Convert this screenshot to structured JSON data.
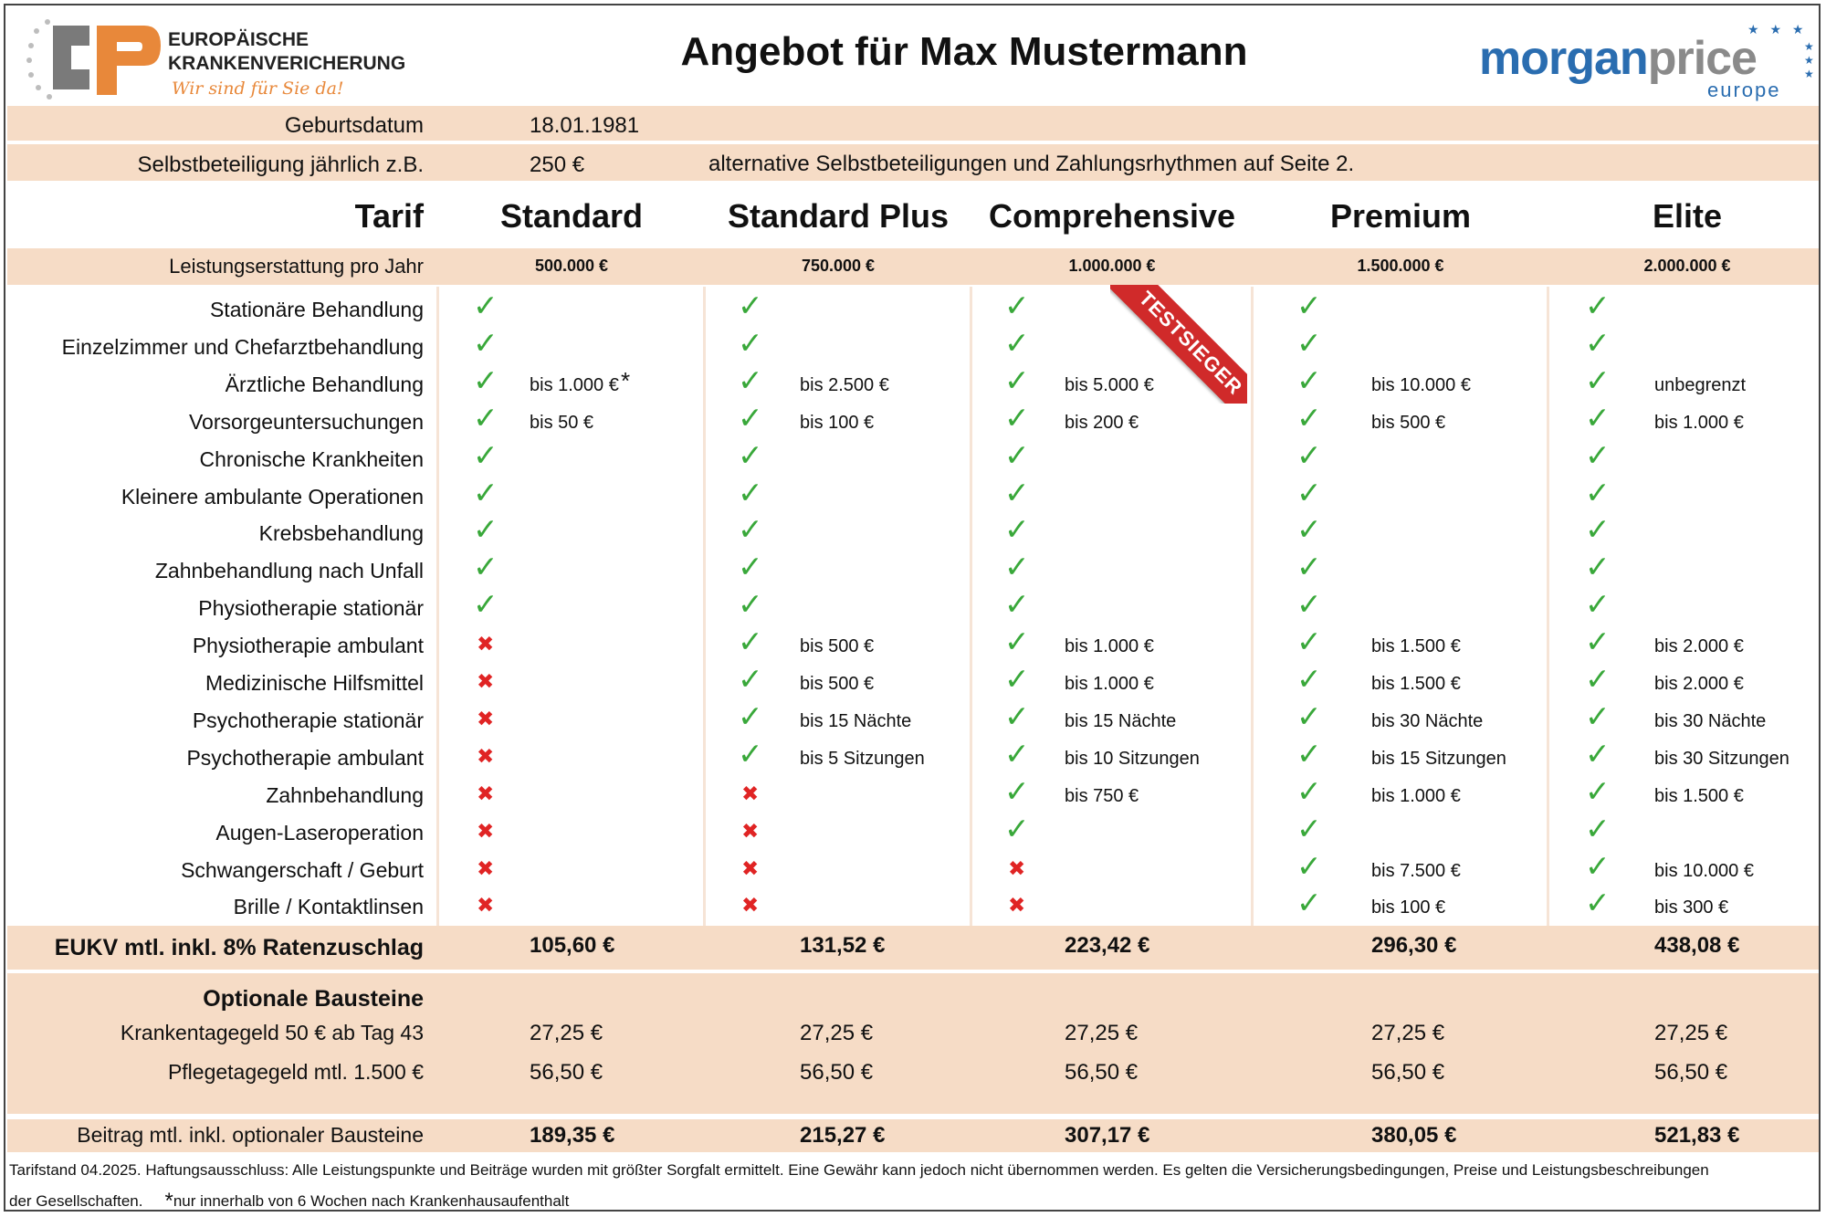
{
  "header": {
    "logo_left": {
      "initials": "CP",
      "line1": "EUROPÄISCHE",
      "line2": "KRANKENVERICHERUNG",
      "slogan": "Wir sind für Sie da!"
    },
    "title": "Angebot für Max Mustermann",
    "logo_right": {
      "word1": "morgan",
      "word2": "price",
      "sub": "europe"
    }
  },
  "info": {
    "birth_label": "Geburtsdatum",
    "birth_value": "18.01.1981",
    "deductible_label": "Selbstbeteiligung jährlich z.B.",
    "deductible_value": "250 €",
    "deductible_note": "alternative Selbstbeteiligungen und Zahlungsrhythmen auf Seite 2."
  },
  "table": {
    "tarif_label": "Tarif",
    "reimbursement_label": "Leistungserstattung pro Jahr",
    "badge": "TESTSIEGER",
    "plans": [
      {
        "name": "Standard",
        "amount": "500.000 €"
      },
      {
        "name": "Standard Plus",
        "amount": "750.000 €"
      },
      {
        "name": "Comprehensive",
        "amount": "1.000.000 €"
      },
      {
        "name": "Premium",
        "amount": "1.500.000 €"
      },
      {
        "name": "Elite",
        "amount": "2.000.000 €"
      }
    ],
    "rows": [
      {
        "label": "Stationäre Behandlung",
        "cells": [
          {
            "s": "y",
            "t": ""
          },
          {
            "s": "y",
            "t": ""
          },
          {
            "s": "y",
            "t": ""
          },
          {
            "s": "y",
            "t": ""
          },
          {
            "s": "y",
            "t": ""
          }
        ]
      },
      {
        "label": "Einzelzimmer und Chefarztbehandlung",
        "cells": [
          {
            "s": "y",
            "t": ""
          },
          {
            "s": "y",
            "t": ""
          },
          {
            "s": "y",
            "t": ""
          },
          {
            "s": "y",
            "t": ""
          },
          {
            "s": "y",
            "t": ""
          }
        ]
      },
      {
        "label": "Ärztliche Behandlung",
        "cells": [
          {
            "s": "y",
            "t": "bis 1.000 €",
            "star": "*"
          },
          {
            "s": "y",
            "t": "bis 2.500 €"
          },
          {
            "s": "y",
            "t": "bis 5.000 €"
          },
          {
            "s": "y",
            "t": "bis 10.000 €"
          },
          {
            "s": "y",
            "t": "unbegrenzt"
          }
        ]
      },
      {
        "label": "Vorsorgeuntersuchungen",
        "cells": [
          {
            "s": "y",
            "t": "bis 50 €"
          },
          {
            "s": "y",
            "t": "bis 100 €"
          },
          {
            "s": "y",
            "t": "bis 200 €"
          },
          {
            "s": "y",
            "t": "bis 500 €"
          },
          {
            "s": "y",
            "t": "bis 1.000 €"
          }
        ]
      },
      {
        "label": "Chronische Krankheiten",
        "cells": [
          {
            "s": "y",
            "t": ""
          },
          {
            "s": "y",
            "t": ""
          },
          {
            "s": "y",
            "t": ""
          },
          {
            "s": "y",
            "t": ""
          },
          {
            "s": "y",
            "t": ""
          }
        ]
      },
      {
        "label": "Kleinere ambulante Operationen",
        "cells": [
          {
            "s": "y",
            "t": ""
          },
          {
            "s": "y",
            "t": ""
          },
          {
            "s": "y",
            "t": ""
          },
          {
            "s": "y",
            "t": ""
          },
          {
            "s": "y",
            "t": ""
          }
        ]
      },
      {
        "label": "Krebsbehandlung",
        "cells": [
          {
            "s": "y",
            "t": ""
          },
          {
            "s": "y",
            "t": ""
          },
          {
            "s": "y",
            "t": ""
          },
          {
            "s": "y",
            "t": ""
          },
          {
            "s": "y",
            "t": ""
          }
        ]
      },
      {
        "label": "Zahnbehandlung nach Unfall",
        "cells": [
          {
            "s": "y",
            "t": ""
          },
          {
            "s": "y",
            "t": ""
          },
          {
            "s": "y",
            "t": ""
          },
          {
            "s": "y",
            "t": ""
          },
          {
            "s": "y",
            "t": ""
          }
        ]
      },
      {
        "label": "Physiotherapie stationär",
        "cells": [
          {
            "s": "y",
            "t": ""
          },
          {
            "s": "y",
            "t": ""
          },
          {
            "s": "y",
            "t": ""
          },
          {
            "s": "y",
            "t": ""
          },
          {
            "s": "y",
            "t": ""
          }
        ]
      },
      {
        "label": "Physiotherapie ambulant",
        "cells": [
          {
            "s": "n",
            "t": ""
          },
          {
            "s": "y",
            "t": "bis 500 €"
          },
          {
            "s": "y",
            "t": "bis 1.000 €"
          },
          {
            "s": "y",
            "t": "bis 1.500 €"
          },
          {
            "s": "y",
            "t": "bis 2.000 €"
          }
        ]
      },
      {
        "label": "Medizinische Hilfsmittel",
        "cells": [
          {
            "s": "n",
            "t": ""
          },
          {
            "s": "y",
            "t": "bis 500 €"
          },
          {
            "s": "y",
            "t": "bis 1.000 €"
          },
          {
            "s": "y",
            "t": "bis 1.500 €"
          },
          {
            "s": "y",
            "t": "bis 2.000 €"
          }
        ]
      },
      {
        "label": "Psychotherapie stationär",
        "cells": [
          {
            "s": "n",
            "t": ""
          },
          {
            "s": "y",
            "t": "bis 15 Nächte"
          },
          {
            "s": "y",
            "t": "bis 15 Nächte"
          },
          {
            "s": "y",
            "t": "bis 30 Nächte"
          },
          {
            "s": "y",
            "t": "bis 30 Nächte"
          }
        ]
      },
      {
        "label": "Psychotherapie ambulant",
        "cells": [
          {
            "s": "n",
            "t": ""
          },
          {
            "s": "y",
            "t": "bis 5 Sitzungen"
          },
          {
            "s": "y",
            "t": "bis 10 Sitzungen"
          },
          {
            "s": "y",
            "t": "bis 15 Sitzungen"
          },
          {
            "s": "y",
            "t": "bis 30 Sitzungen"
          }
        ]
      },
      {
        "label": "Zahnbehandlung",
        "cells": [
          {
            "s": "n",
            "t": ""
          },
          {
            "s": "n",
            "t": ""
          },
          {
            "s": "y",
            "t": "bis 750 €"
          },
          {
            "s": "y",
            "t": "bis 1.000 €"
          },
          {
            "s": "y",
            "t": "bis 1.500 €"
          }
        ]
      },
      {
        "label": "Augen-Laseroperation",
        "cells": [
          {
            "s": "n",
            "t": ""
          },
          {
            "s": "n",
            "t": ""
          },
          {
            "s": "y",
            "t": ""
          },
          {
            "s": "y",
            "t": ""
          },
          {
            "s": "y",
            "t": ""
          }
        ]
      },
      {
        "label": "Schwangerschaft / Geburt",
        "cells": [
          {
            "s": "n",
            "t": ""
          },
          {
            "s": "n",
            "t": ""
          },
          {
            "s": "n",
            "t": ""
          },
          {
            "s": "y",
            "t": "bis 7.500 €"
          },
          {
            "s": "y",
            "t": "bis 10.000 €"
          }
        ]
      },
      {
        "label": "Brille / Kontaktlinsen",
        "cells": [
          {
            "s": "n",
            "t": ""
          },
          {
            "s": "n",
            "t": ""
          },
          {
            "s": "n",
            "t": ""
          },
          {
            "s": "y",
            "t": "bis 100 €"
          },
          {
            "s": "y",
            "t": "bis 300 €"
          }
        ]
      }
    ],
    "eukv": {
      "label": "EUKV mtl. inkl. 8% Ratenzuschlag",
      "values": [
        "105,60 €",
        "131,52 €",
        "223,42 €",
        "296,30 €",
        "438,08 €"
      ]
    },
    "optional": {
      "title": "Optionale Bausteine",
      "rows": [
        {
          "label": "Krankentagegeld 50 € ab Tag 43",
          "values": [
            "27,25 €",
            "27,25 €",
            "27,25 €",
            "27,25 €",
            "27,25 €"
          ]
        },
        {
          "label": "Pflegetagegeld mtl. 1.500 €",
          "values": [
            "56,50 €",
            "56,50 €",
            "56,50 €",
            "56,50 €",
            "56,50 €"
          ]
        }
      ]
    },
    "total": {
      "label": "Beitrag mtl. inkl. optionaler Bausteine",
      "values": [
        "189,35 €",
        "215,27 €",
        "307,17 €",
        "380,05 €",
        "521,83 €"
      ]
    }
  },
  "footer": {
    "line1": "Tarifstand 04.2025. Haftungsausschluss: Alle Leistungspunkte und Beiträge wurden mit größter Sorgfalt ermittelt. Eine Gewähr kann jedoch nicht übernommen werden. Es gelten die Versicherungsbedingungen, Preise und Leistungsbeschreibungen",
    "line2": "der Gesellschaften.",
    "star": "*",
    "note": "nur innerhalb von 6 Wochen nach Krankenhausaufenthalt"
  },
  "colors": {
    "band": "#f6dcc6",
    "check": "#39a83a",
    "cross": "#e02424",
    "orange": "#e8883a",
    "gray": "#7a7a7a",
    "blue": "#2a6db0",
    "ribbon": "#d02a2a"
  }
}
